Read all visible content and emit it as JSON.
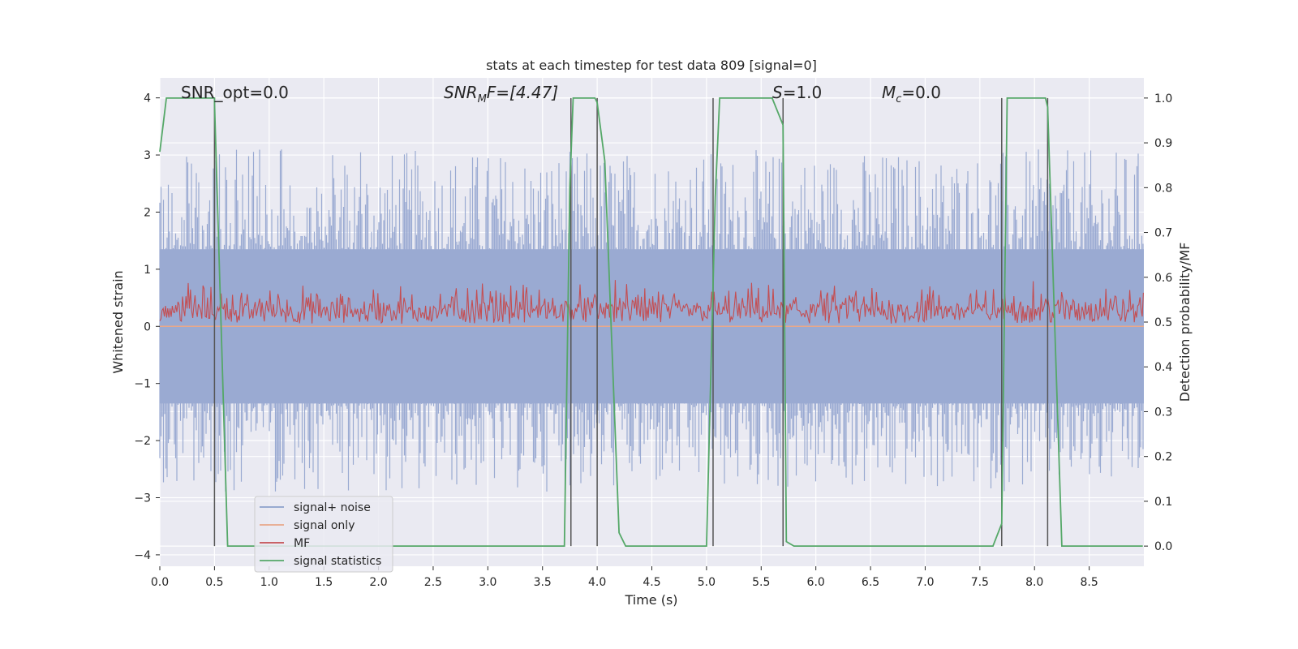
{
  "chart_data": {
    "type": "line",
    "title": "stats at each timestep for test data 809 [signal=0]",
    "xlabel": "Time (s)",
    "ylabel_left": "Whitened strain",
    "ylabel_right": "Detection probability/MF",
    "xlim": [
      0.0,
      9.0
    ],
    "ylim_left": [
      -4.2,
      4.35
    ],
    "ylim_right": [
      -0.045,
      1.045
    ],
    "x_ticks": [
      "0.0",
      "0.5",
      "1.0",
      "1.5",
      "2.0",
      "2.5",
      "3.0",
      "3.5",
      "4.0",
      "4.5",
      "5.0",
      "5.5",
      "6.0",
      "6.5",
      "7.0",
      "7.5",
      "8.0",
      "8.5"
    ],
    "y_ticks_left": [
      "4",
      "3",
      "2",
      "1",
      "0",
      "−1",
      "−2",
      "−3",
      "−4"
    ],
    "y_ticks_right": [
      "1.0",
      "0.9",
      "0.8",
      "0.7",
      "0.6",
      "0.5",
      "0.4",
      "0.3",
      "0.2",
      "0.1",
      "0.0"
    ],
    "grid": true,
    "legend_position": "lower-left",
    "annotations": {
      "snr_opt": "SNR_opt=0.0",
      "snr_mf_main": "SNR",
      "snr_mf_sub": "M",
      "snr_mf_tail": "F=[4.47]",
      "s_label": "S",
      "s_value": "=1.0",
      "mc_label": "M",
      "mc_sub": "c",
      "mc_value": "=0.0"
    },
    "series": [
      {
        "name": "signal+ noise",
        "color": "#8da0cb",
        "style": "noise band, amplitude approx ±1.4 with spikes to ±3"
      },
      {
        "name": "signal only",
        "color": "#e8a88a",
        "values_constant": 0.0
      },
      {
        "name": "MF",
        "color": "#c44e52",
        "style": "noise band between approx 0.05 and 0.6 on left axis"
      },
      {
        "name": "signal statistics",
        "color": "#55a868",
        "axis": "right",
        "x": [
          0.0,
          0.06,
          0.5,
          0.5,
          0.62,
          3.7,
          3.75,
          3.78,
          3.98,
          4.0,
          4.07,
          4.2,
          4.26,
          5.0,
          5.08,
          5.12,
          5.6,
          5.7,
          5.73,
          5.8,
          7.62,
          7.7,
          7.75,
          8.1,
          8.12,
          8.25,
          8.99
        ],
        "values": [
          0.88,
          1.0,
          1.0,
          0.99,
          0.0,
          0.0,
          0.8,
          1.0,
          1.0,
          0.99,
          0.86,
          0.03,
          0.0,
          0.0,
          0.78,
          1.0,
          1.0,
          0.94,
          0.01,
          0.0,
          0.0,
          0.05,
          1.0,
          1.0,
          0.98,
          0.0,
          0.0
        ]
      }
    ],
    "vertical_markers_x": [
      0.5,
      3.76,
      4.0,
      5.06,
      5.7,
      7.7,
      8.12
    ]
  }
}
